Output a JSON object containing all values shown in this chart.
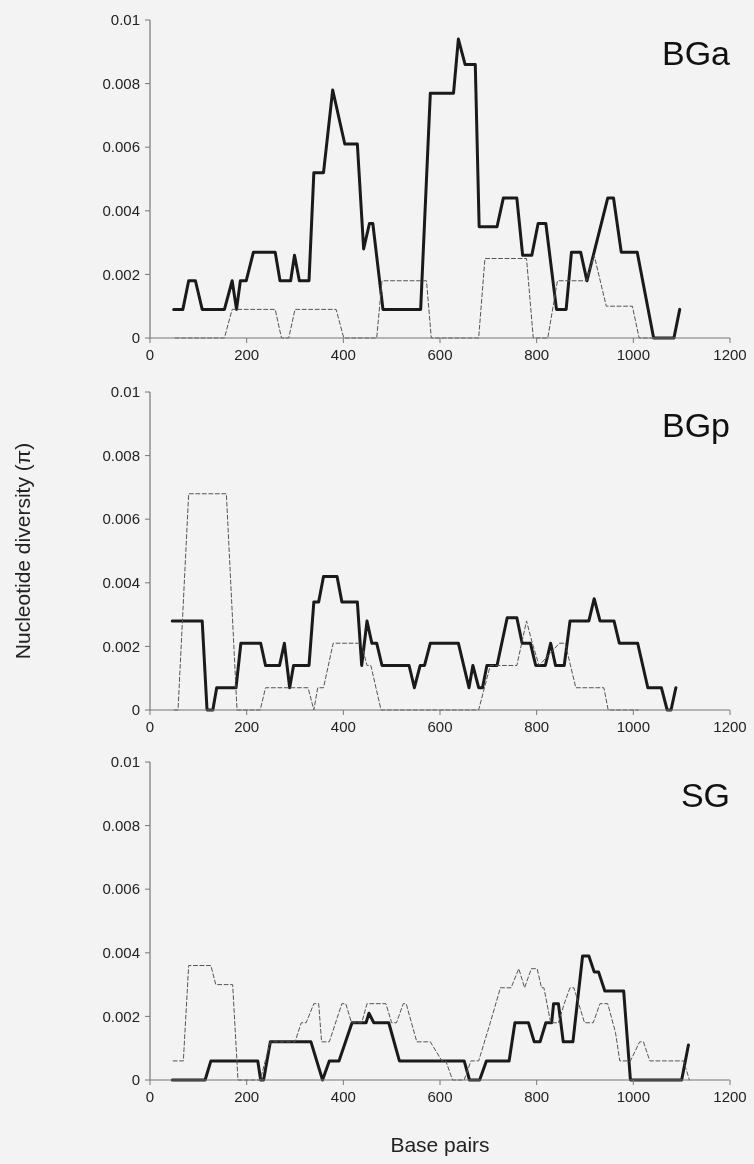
{
  "chart_data": [
    {
      "type": "line",
      "title": "BGa",
      "xlim": [
        0,
        1200
      ],
      "xticks": [
        0,
        200,
        400,
        600,
        800,
        1000,
        1200
      ],
      "ylim": [
        0,
        0.01
      ],
      "yticks": [
        0,
        0.002,
        0.004,
        0.006,
        0.008,
        0.01
      ],
      "series": [
        {
          "color": "#1a1a1a",
          "line_style": "solid",
          "x": [
            49,
            68,
            80,
            94,
            108,
            154,
            170,
            179,
            187,
            199,
            214,
            259,
            269,
            291,
            299,
            309,
            329,
            339,
            359,
            378,
            403,
            429,
            442,
            454,
            461,
            482,
            560,
            580,
            628,
            638,
            652,
            673,
            681,
            718,
            731,
            759,
            771,
            790,
            803,
            819,
            841,
            861,
            872,
            891,
            904,
            947,
            959,
            975,
            1008,
            1042,
            1084,
            1096
          ],
          "values": [
            0.0009,
            0.0009,
            0.0018,
            0.0018,
            0.0009,
            0.0009,
            0.0018,
            0.0009,
            0.0018,
            0.0018,
            0.0027,
            0.0027,
            0.0018,
            0.0018,
            0.0026,
            0.0018,
            0.0018,
            0.0052,
            0.0052,
            0.0078,
            0.0061,
            0.0061,
            0.0028,
            0.0036,
            0.0036,
            0.0009,
            0.0009,
            0.0077,
            0.0077,
            0.0094,
            0.0086,
            0.0086,
            0.0035,
            0.0035,
            0.0044,
            0.0044,
            0.0026,
            0.0026,
            0.0036,
            0.0036,
            0.0009,
            0.0009,
            0.0027,
            0.0027,
            0.0018,
            0.0044,
            0.0044,
            0.0027,
            0.0027,
            0,
            0,
            0.0009
          ]
        },
        {
          "color": "#555555",
          "line_style": "dashed",
          "x": [
            52,
            154,
            170,
            259,
            272,
            287,
            300,
            385,
            401,
            469,
            480,
            572,
            582,
            680,
            693,
            779,
            793,
            823,
            843,
            903,
            919,
            944,
            998,
            1012,
            1042
          ],
          "values": [
            0,
            0,
            0.0009,
            0.0009,
            0,
            0,
            0.0009,
            0.0009,
            0,
            0,
            0.0018,
            0.0018,
            0,
            0,
            0.0025,
            0.0025,
            0,
            0,
            0.0018,
            0.0018,
            0.0026,
            0.001,
            0.001,
            0,
            0
          ]
        }
      ]
    },
    {
      "type": "line",
      "title": "BGp",
      "ylabel": "Nucleotide diversity (π)",
      "xlim": [
        0,
        1200
      ],
      "xticks": [
        0,
        200,
        400,
        600,
        800,
        1000,
        1200
      ],
      "ylim": [
        0,
        0.01
      ],
      "yticks": [
        0,
        0.002,
        0.004,
        0.006,
        0.008,
        0.01
      ],
      "series": [
        {
          "color": "#1a1a1a",
          "line_style": "solid",
          "x": [
            46,
            108,
            118,
            130,
            138,
            178,
            188,
            229,
            239,
            268,
            278,
            289,
            297,
            329,
            339,
            349,
            359,
            387,
            397,
            429,
            438,
            449,
            459,
            469,
            480,
            536,
            547,
            559,
            568,
            580,
            638,
            660,
            668,
            680,
            688,
            697,
            718,
            739,
            759,
            770,
            787,
            798,
            818,
            829,
            839,
            857,
            869,
            908,
            919,
            931,
            960,
            971,
            1009,
            1030,
            1058,
            1070,
            1078,
            1088
          ],
          "values": [
            0.0028,
            0.0028,
            0,
            0,
            0.0007,
            0.0007,
            0.0021,
            0.0021,
            0.0014,
            0.0014,
            0.0021,
            0.0007,
            0.0014,
            0.0014,
            0.0034,
            0.0034,
            0.0042,
            0.0042,
            0.0034,
            0.0034,
            0.0014,
            0.0028,
            0.0021,
            0.0021,
            0.0014,
            0.0014,
            0.0007,
            0.0014,
            0.0014,
            0.0021,
            0.0021,
            0.0007,
            0.0014,
            0.0007,
            0.0007,
            0.0014,
            0.0014,
            0.0029,
            0.0029,
            0.0021,
            0.0021,
            0.0014,
            0.0014,
            0.0021,
            0.0014,
            0.0014,
            0.0028,
            0.0028,
            0.0035,
            0.0028,
            0.0028,
            0.0021,
            0.0021,
            0.0007,
            0.0007,
            0,
            0,
            0.0007
          ]
        },
        {
          "color": "#555555",
          "line_style": "dashed",
          "x": [
            50,
            58,
            80,
            158,
            180,
            228,
            239,
            327,
            339,
            347,
            359,
            379,
            437,
            449,
            457,
            478,
            680,
            704,
            759,
            779,
            791,
            805,
            847,
            859,
            881,
            939,
            948,
            1010
          ],
          "values": [
            0,
            0,
            0.0068,
            0.0068,
            0,
            0,
            0.0007,
            0.0007,
            0,
            0.0007,
            0.0007,
            0.0021,
            0.0021,
            0.0014,
            0.0014,
            0,
            0,
            0.0014,
            0.0014,
            0.0028,
            0.0021,
            0.0014,
            0.0021,
            0.0021,
            0.0007,
            0.0007,
            0,
            0
          ]
        }
      ]
    },
    {
      "type": "line",
      "title": "SG",
      "xlabel": "Base pairs",
      "xlim": [
        0,
        1200
      ],
      "xticks": [
        0,
        200,
        400,
        600,
        800,
        1000,
        1200
      ],
      "ylim": [
        0,
        0.01
      ],
      "yticks": [
        0,
        0.002,
        0.004,
        0.006,
        0.008,
        0.01
      ],
      "series": [
        {
          "color": "#1a1a1a",
          "line_style": "solid",
          "x": [
            46,
            114,
            126,
            223,
            229,
            235,
            249,
            333,
            357,
            371,
            391,
            418,
            447,
            453,
            463,
            494,
            516,
            650,
            661,
            682,
            696,
            743,
            755,
            783,
            795,
            807,
            819,
            831,
            835,
            845,
            855,
            875,
            895,
            908,
            919,
            928,
            941,
            980,
            994,
            1100,
            1114
          ],
          "values": [
            0,
            0,
            0.0006,
            0.0006,
            0,
            0,
            0.0012,
            0.0012,
            0,
            0.0006,
            0.0006,
            0.0018,
            0.0018,
            0.0021,
            0.0018,
            0.0018,
            0.0006,
            0.0006,
            0,
            0,
            0.0006,
            0.0006,
            0.0018,
            0.0018,
            0.0012,
            0.0012,
            0.0018,
            0.0018,
            0.0024,
            0.0024,
            0.0012,
            0.0012,
            0.0039,
            0.0039,
            0.0034,
            0.0034,
            0.0028,
            0.0028,
            0,
            0,
            0.0011
          ]
        },
        {
          "color": "#555555",
          "line_style": "dashed",
          "x": [
            48,
            69,
            80,
            126,
            136,
            171,
            182,
            228,
            249,
            300,
            313,
            323,
            339,
            349,
            355,
            371,
            397,
            405,
            417,
            438,
            449,
            488,
            500,
            510,
            524,
            530,
            552,
            580,
            604,
            612,
            626,
            650,
            664,
            680,
            704,
            725,
            747,
            763,
            775,
            789,
            801,
            810,
            815,
            829,
            845,
            857,
            869,
            877,
            899,
            917,
            931,
            947,
            963,
            972,
            994,
            1013,
            1021,
            1034,
            1104,
            1116
          ],
          "values": [
            0.0006,
            0.0006,
            0.0036,
            0.0036,
            0.003,
            0.003,
            0,
            0,
            0.0012,
            0.0012,
            0.0018,
            0.0018,
            0.0024,
            0.0024,
            0.0012,
            0.0012,
            0.0024,
            0.0024,
            0.0018,
            0.0018,
            0.0024,
            0.0024,
            0.0018,
            0.0018,
            0.0024,
            0.0024,
            0.0012,
            0.0012,
            0.0006,
            0.0006,
            0,
            0,
            0.0006,
            0.0006,
            0.0018,
            0.0029,
            0.0029,
            0.0035,
            0.0029,
            0.0035,
            0.0035,
            0.0029,
            0.0029,
            0.0018,
            0.0018,
            0.0024,
            0.0029,
            0.0029,
            0.0018,
            0.0018,
            0.0024,
            0.0024,
            0.0015,
            0.0006,
            0.0006,
            0.0012,
            0.0012,
            0.0006,
            0.0006,
            0
          ]
        }
      ]
    }
  ]
}
